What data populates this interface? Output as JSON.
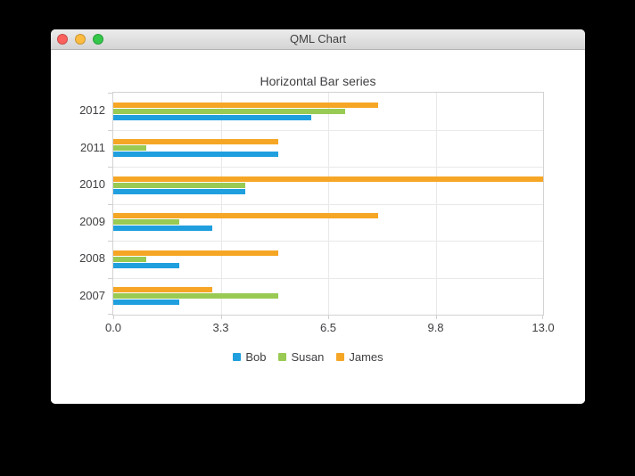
{
  "window": {
    "title": "QML Chart",
    "traffic_lights": [
      {
        "name": "close-button",
        "color": "#fc615d"
      },
      {
        "name": "minimize-button",
        "color": "#fdbc40"
      },
      {
        "name": "zoom-button",
        "color": "#34c749"
      }
    ]
  },
  "chart_data": {
    "type": "bar",
    "orientation": "horizontal",
    "title": "Horizontal Bar series",
    "categories": [
      "2007",
      "2008",
      "2009",
      "2010",
      "2011",
      "2012"
    ],
    "series": [
      {
        "name": "Bob",
        "color": "#209fdf",
        "values": [
          2,
          2,
          3,
          4,
          5,
          6
        ]
      },
      {
        "name": "Susan",
        "color": "#99ca53",
        "values": [
          5,
          1,
          2,
          4,
          1,
          7
        ]
      },
      {
        "name": "James",
        "color": "#f6a625",
        "values": [
          3,
          5,
          8,
          13,
          5,
          8
        ]
      }
    ],
    "xlim": [
      0,
      13
    ],
    "x_ticks": [
      {
        "value": 0,
        "label": "0.0"
      },
      {
        "value": 3.25,
        "label": "3.3"
      },
      {
        "value": 6.5,
        "label": "6.5"
      },
      {
        "value": 9.75,
        "label": "9.8"
      },
      {
        "value": 13,
        "label": "13.0"
      }
    ],
    "grid": true,
    "legend_position": "bottom",
    "note_order": "categories listed bottom-to-top; within a group bars top-to-bottom are James, Susan, Bob",
    "colors": {
      "plot_border": "#d2d2d2",
      "gridline": "#e9e9e9",
      "tick": "#cfcfcf",
      "text": "#404044"
    }
  }
}
